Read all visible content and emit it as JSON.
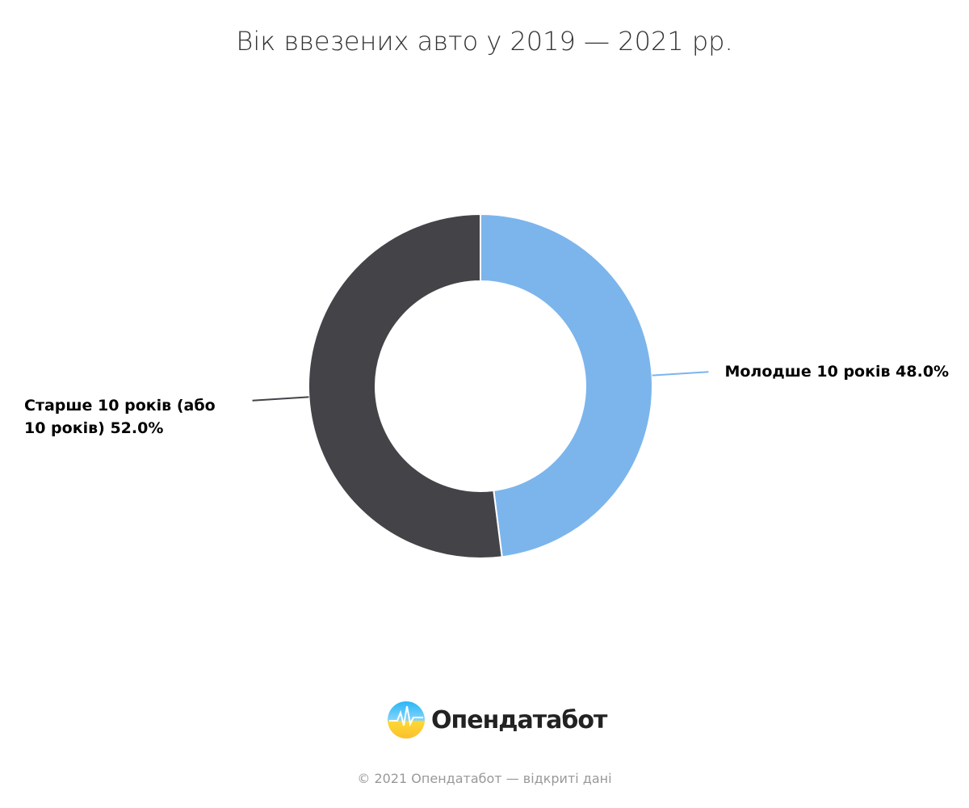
{
  "chart_data": {
    "type": "donut",
    "title": "Вік ввезених авто у 2019 — 2021 рр.",
    "categories": [
      "Молодше 10 років",
      "Старше 10 років (або 10 років)"
    ],
    "values": [
      48,
      52
    ],
    "value_labels": [
      "48.0%",
      "52.0%"
    ],
    "colors": [
      "#7cb5ec",
      "#434348"
    ]
  },
  "logo": "Опендатабот",
  "footer": "© 2021 Опендатабот — відкриті дані"
}
